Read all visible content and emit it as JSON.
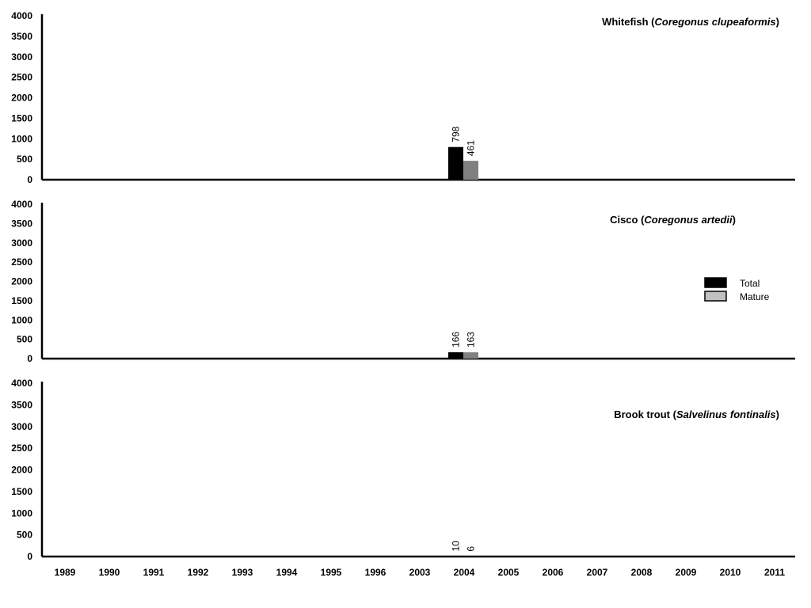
{
  "chart_data": [
    {
      "type": "bar",
      "title_plain": "Whitefish (",
      "title_italic": "Coregonus clupeaformis",
      "title_end": ")",
      "categories": [
        "1989",
        "1990",
        "1991",
        "1992",
        "1993",
        "1994",
        "1995",
        "1996",
        "2003",
        "2004",
        "2005",
        "2006",
        "2007",
        "2008",
        "2009",
        "2010",
        "2011"
      ],
      "ylim": [
        0,
        4000
      ],
      "yticks": [
        "0",
        "500",
        "1000",
        "1500",
        "2000",
        "2500",
        "3000",
        "3500",
        "4000"
      ],
      "series": [
        {
          "name": "Total",
          "color": "#000000",
          "values": [
            null,
            null,
            null,
            null,
            null,
            null,
            null,
            null,
            null,
            798,
            null,
            null,
            null,
            null,
            null,
            null,
            null
          ],
          "labels": [
            null,
            null,
            null,
            null,
            null,
            null,
            null,
            null,
            null,
            "798",
            null,
            null,
            null,
            null,
            null,
            null,
            null
          ]
        },
        {
          "name": "Mature",
          "color": "#808080",
          "values": [
            null,
            null,
            null,
            null,
            null,
            null,
            null,
            null,
            null,
            461,
            null,
            null,
            null,
            null,
            null,
            null,
            null
          ],
          "labels": [
            null,
            null,
            null,
            null,
            null,
            null,
            null,
            null,
            null,
            "461",
            null,
            null,
            null,
            null,
            null,
            null,
            null
          ]
        }
      ]
    },
    {
      "type": "bar",
      "title_plain": "Cisco (",
      "title_italic": "Coregonus artedii",
      "title_end": ")",
      "categories": [
        "1989",
        "1990",
        "1991",
        "1992",
        "1993",
        "1994",
        "1995",
        "1996",
        "2003",
        "2004",
        "2005",
        "2006",
        "2007",
        "2008",
        "2009",
        "2010",
        "2011"
      ],
      "ylim": [
        0,
        4000
      ],
      "yticks": [
        "0",
        "500",
        "1000",
        "1500",
        "2000",
        "2500",
        "3000",
        "3500",
        "4000"
      ],
      "series": [
        {
          "name": "Total",
          "color": "#000000",
          "values": [
            null,
            null,
            null,
            null,
            null,
            null,
            null,
            null,
            null,
            166,
            null,
            null,
            null,
            null,
            null,
            null,
            null
          ],
          "labels": [
            null,
            null,
            null,
            null,
            null,
            null,
            null,
            null,
            null,
            "166",
            null,
            null,
            null,
            null,
            null,
            null,
            null
          ]
        },
        {
          "name": "Mature",
          "color": "#808080",
          "values": [
            null,
            null,
            null,
            null,
            null,
            null,
            null,
            null,
            null,
            163,
            null,
            null,
            null,
            null,
            null,
            null,
            null
          ],
          "labels": [
            null,
            null,
            null,
            null,
            null,
            null,
            null,
            null,
            null,
            "163",
            null,
            null,
            null,
            null,
            null,
            null,
            null
          ]
        }
      ]
    },
    {
      "type": "bar",
      "title_plain": "Brook trout (",
      "title_italic": "Salvelinus fontinalis",
      "title_end": ")",
      "categories": [
        "1989",
        "1990",
        "1991",
        "1992",
        "1993",
        "1994",
        "1995",
        "1996",
        "2003",
        "2004",
        "2005",
        "2006",
        "2007",
        "2008",
        "2009",
        "2010",
        "2011"
      ],
      "ylim": [
        0,
        4000
      ],
      "yticks": [
        "0",
        "500",
        "1000",
        "1500",
        "2000",
        "2500",
        "3000",
        "3500",
        "4000"
      ],
      "series": [
        {
          "name": "Total",
          "color": "#000000",
          "values": [
            null,
            null,
            null,
            null,
            null,
            null,
            null,
            null,
            null,
            10,
            null,
            null,
            null,
            null,
            null,
            null,
            null
          ],
          "labels": [
            null,
            null,
            null,
            null,
            null,
            null,
            null,
            null,
            null,
            "10",
            null,
            null,
            null,
            null,
            null,
            null,
            null
          ]
        },
        {
          "name": "Mature",
          "color": "#808080",
          "values": [
            null,
            null,
            null,
            null,
            null,
            null,
            null,
            null,
            null,
            6,
            null,
            null,
            null,
            null,
            null,
            null,
            null
          ],
          "labels": [
            null,
            null,
            null,
            null,
            null,
            null,
            null,
            null,
            null,
            "6",
            null,
            null,
            null,
            null,
            null,
            null,
            null
          ]
        }
      ]
    }
  ],
  "legend": {
    "placement": "right-middle",
    "items": [
      {
        "label": "Total",
        "color": "#000000"
      },
      {
        "label": "Mature",
        "color": "#c0c0c0"
      }
    ]
  }
}
